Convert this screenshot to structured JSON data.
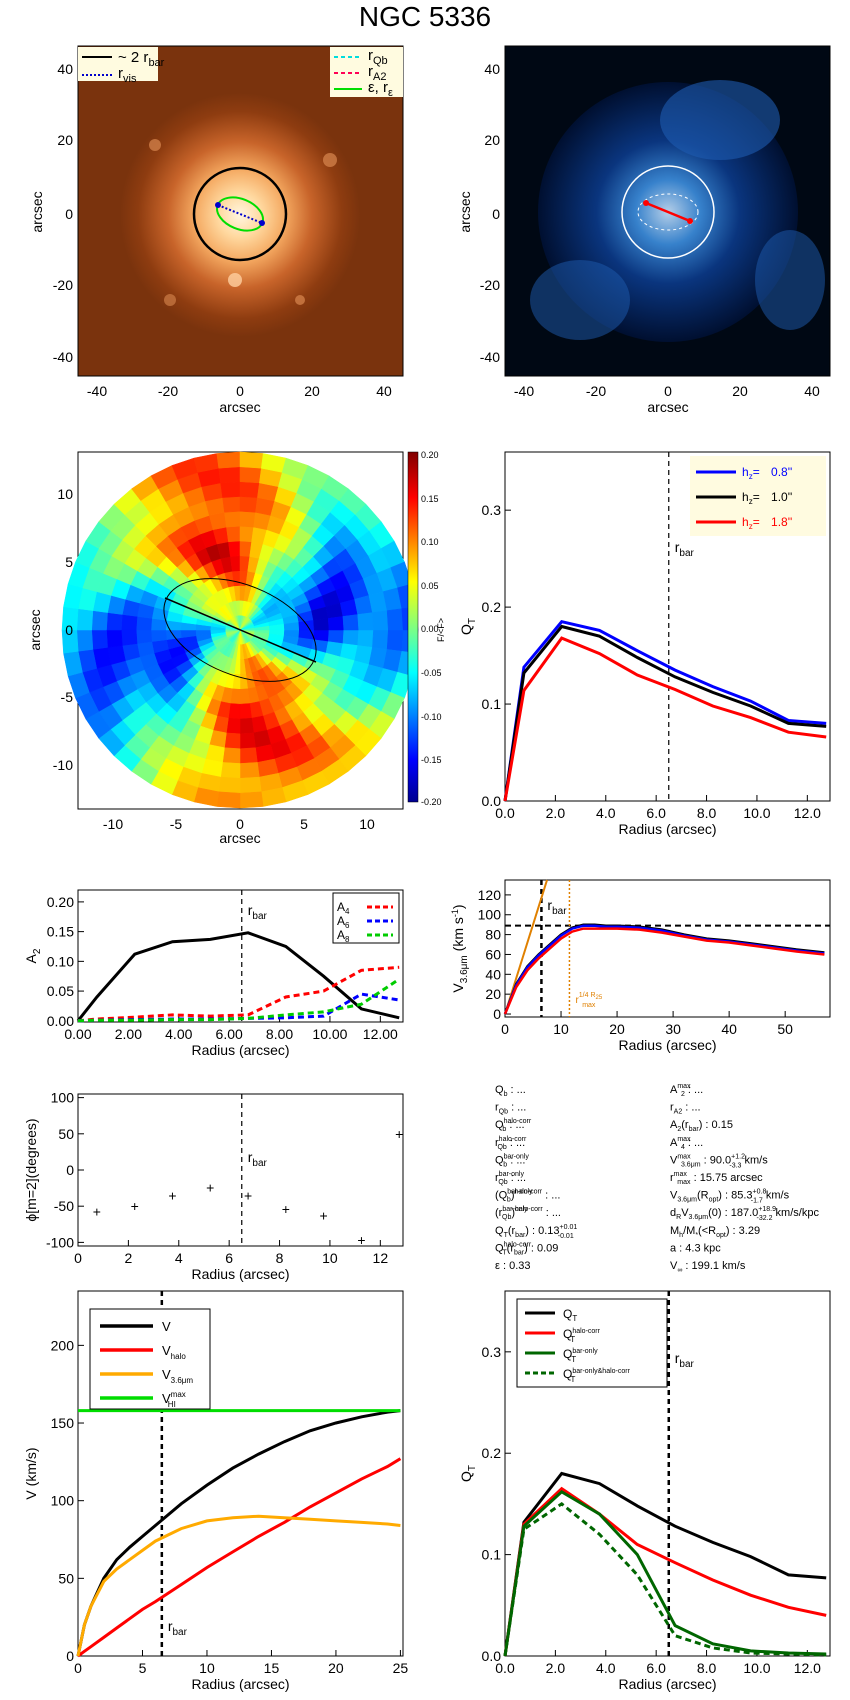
{
  "title": "NGC 5336",
  "panel_image": {
    "xlabel": "arcsec",
    "ylabel": "arcsec",
    "ticks": [
      "-40",
      "-20",
      "0",
      "20",
      "40"
    ],
    "legend_left": [
      "~ 2 r",
      "bar",
      "r",
      "vis"
    ],
    "legend_right": [
      "r",
      "Qb",
      "r",
      "A2",
      "ε, r",
      "ε"
    ]
  },
  "panel_residual": {
    "xlabel": "arcsec",
    "ylabel": "arcsec",
    "ticks": [
      "-40",
      "-20",
      "0",
      "20",
      "40"
    ]
  },
  "panel_ratio": {
    "xlabel": "arcsec",
    "ylabel": "arcsec",
    "ticks": [
      "-10",
      "-5",
      "0",
      "5",
      "10"
    ],
    "colorbar_ticks": [
      "0.20",
      "0.15",
      "0.10",
      "0.05",
      "0.00",
      "-0.05",
      "-0.10",
      "-0.15",
      "-0.20"
    ],
    "colorbar_label": "F/<F>",
    "colors": {
      "neg": "#00008f",
      "pos": "#800000"
    }
  },
  "chart_data": [
    {
      "type": "line",
      "id": "qt_hz",
      "x": [
        0,
        0.75,
        2.25,
        3.75,
        5.25,
        6.75,
        8.25,
        9.75,
        11.25,
        12.75
      ],
      "series": [
        {
          "name": "h",
          "label_value": "0.8''",
          "color": "#0000ff",
          "values": [
            0,
            0.138,
            0.185,
            0.176,
            0.155,
            0.135,
            0.118,
            0.103,
            0.083,
            0.08
          ]
        },
        {
          "name": "h",
          "label_value": "1.0''",
          "color": "#000000",
          "values": [
            0,
            0.132,
            0.18,
            0.17,
            0.148,
            0.128,
            0.112,
            0.098,
            0.08,
            0.077
          ]
        },
        {
          "name": "h",
          "label_value": "1.8''",
          "color": "#ff0000",
          "values": [
            0,
            0.114,
            0.168,
            0.152,
            0.13,
            0.115,
            0.098,
            0.086,
            0.071,
            0.066
          ]
        }
      ],
      "xlim": [
        0,
        12.9
      ],
      "ylim": [
        0,
        0.36
      ],
      "xticks": [
        0,
        2,
        4,
        6,
        8,
        10,
        12
      ],
      "yticks": [
        0.0,
        0.1,
        0.2,
        0.3
      ],
      "xlabel": "Radius (arcsec)",
      "ylabel": "Q",
      "rbar": 6.5,
      "rbar_label": "r",
      "rbar_sub": "bar",
      "legend_prefix": "h",
      "legend_sub": "z"
    },
    {
      "type": "line",
      "id": "a2",
      "x": [
        0,
        0.75,
        2.25,
        3.75,
        5.25,
        6.75,
        8.25,
        9.75,
        11.25,
        12.75
      ],
      "series": [
        {
          "name": "A2",
          "color": "#000000",
          "dash": false,
          "values": [
            0,
            0.04,
            0.112,
            0.133,
            0.137,
            0.148,
            0.125,
            0.075,
            0.02,
            0.005
          ]
        },
        {
          "name": "A",
          "sub": "4",
          "color": "#ff0000",
          "dash": true,
          "values": [
            0,
            0.003,
            0.006,
            0.01,
            0.008,
            0.01,
            0.04,
            0.05,
            0.085,
            0.09
          ]
        },
        {
          "name": "A",
          "sub": "6",
          "color": "#0000ff",
          "dash": true,
          "values": [
            0,
            0.001,
            0.002,
            0.003,
            0.003,
            0.004,
            0.005,
            0.008,
            0.045,
            0.035
          ]
        },
        {
          "name": "A",
          "sub": "8",
          "color": "#00cc00",
          "dash": true,
          "values": [
            0,
            0.001,
            0.001,
            0.002,
            0.002,
            0.004,
            0.01,
            0.015,
            0.028,
            0.07
          ]
        }
      ],
      "xlim": [
        0,
        12.9
      ],
      "ylim": [
        -0.002,
        0.22
      ],
      "xticks": [
        0,
        2,
        4,
        6,
        8,
        10,
        12
      ],
      "yticks": [
        0.0,
        0.05,
        0.1,
        0.15,
        0.2
      ],
      "xlabel": "Radius (arcsec)",
      "ylabel": "A",
      "rbar": 6.5
    },
    {
      "type": "line",
      "id": "vcirc",
      "x": [
        0,
        2,
        4,
        6,
        8,
        10,
        12,
        14,
        16,
        18,
        20,
        24,
        28,
        32,
        36,
        40,
        44,
        48,
        52,
        57
      ],
      "series": [
        {
          "name": "black",
          "color": "#000000",
          "values": [
            0,
            30,
            48,
            60,
            70,
            80,
            87,
            90,
            90,
            89,
            89,
            88,
            85,
            80,
            76,
            74,
            71,
            68,
            65,
            62
          ]
        },
        {
          "name": "blue",
          "color": "#0000ff",
          "values": [
            0,
            29,
            47,
            59,
            69,
            79,
            86,
            89,
            89,
            88,
            88,
            87,
            84,
            79,
            75,
            73,
            70,
            67,
            64,
            61
          ]
        },
        {
          "name": "red",
          "color": "#ff0000",
          "values": [
            0,
            27,
            44,
            56,
            66,
            76,
            83,
            86,
            86,
            86,
            86,
            85,
            82,
            78,
            74,
            72,
            69,
            66,
            63,
            60
          ]
        }
      ],
      "orange_line": {
        "x": [
          0,
          7.5
        ],
        "y": [
          0,
          140
        ]
      },
      "hline": 89,
      "xlim": [
        0,
        58
      ],
      "ylim": [
        -3,
        135
      ],
      "xticks": [
        0,
        10,
        20,
        30,
        40,
        50
      ],
      "yticks": [
        0,
        20,
        40,
        60,
        80,
        100,
        120
      ],
      "xlabel": "Radius (arcsec)",
      "ylabel": "V",
      "ylabel_sub": "3.6μm",
      "ylabel_unit": "(km s",
      "ylabel_unit_sup": "-1",
      "ylabel_close": ")",
      "rbar": 6.5,
      "rmax": 11.5,
      "rmax_label": "r",
      "rmax_sup": "1/4 R",
      "rmax_sup_sub": "25",
      "rmax_sub": "max"
    },
    {
      "type": "scatter",
      "id": "phase",
      "x": [
        0.75,
        2.25,
        3.75,
        5.25,
        6.75,
        8.25,
        9.75,
        11.25,
        12.75
      ],
      "y": [
        -57,
        -50,
        -35,
        -24,
        -35,
        -54,
        -63,
        -97,
        50
      ],
      "xlim": [
        0,
        12.9
      ],
      "ylim": [
        -105,
        105
      ],
      "xticks": [
        0,
        2,
        4,
        6,
        8,
        10,
        12
      ],
      "yticks": [
        -100,
        -50,
        0,
        50,
        100
      ],
      "xlabel": "Radius (arcsec)",
      "ylabel": "ϕ[m=2](degrees)",
      "rbar": 6.5
    },
    {
      "type": "line",
      "id": "rotcurve",
      "x": [
        0,
        0.5,
        1,
        2,
        3,
        4,
        5,
        6,
        8,
        10,
        12,
        14,
        16,
        18,
        20,
        22,
        24,
        25
      ],
      "series": [
        {
          "name": "V",
          "color": "#000000",
          "values": [
            0,
            20,
            32,
            50,
            62,
            70,
            77,
            84,
            98,
            110,
            121,
            130,
            138,
            145,
            150,
            154,
            157,
            158
          ]
        },
        {
          "name": "V",
          "sub": "halo",
          "color": "#ff0000",
          "values": [
            0,
            3,
            6,
            12,
            18,
            24,
            30,
            35,
            46,
            57,
            67,
            77,
            86,
            96,
            105,
            114,
            122,
            127
          ]
        },
        {
          "name": "V",
          "sub": "3.6μm",
          "color": "#ffaa00",
          "values": [
            0,
            20,
            32,
            48,
            56,
            62,
            68,
            74,
            82,
            87,
            89,
            90,
            89,
            88,
            87,
            86,
            85,
            84
          ]
        },
        {
          "name": "V",
          "sub": "HI",
          "sup": "max",
          "color": "#00dd00",
          "values": [
            158,
            158,
            158,
            158,
            158,
            158,
            158,
            158,
            158,
            158,
            158,
            158,
            158,
            158,
            158,
            158,
            158,
            158
          ]
        }
      ],
      "xlim": [
        0,
        25.2
      ],
      "ylim": [
        0,
        235
      ],
      "xticks": [
        0,
        5,
        10,
        15,
        20,
        25
      ],
      "yticks": [
        0,
        50,
        100,
        150,
        200
      ],
      "xlabel": "Radius (arcsec)",
      "ylabel": "V (km/s)",
      "rbar": 6.5
    },
    {
      "type": "line",
      "id": "qt_corr",
      "x": [
        0,
        0.75,
        2.25,
        3.75,
        5.25,
        6.75,
        8.25,
        9.75,
        11.25,
        12.75
      ],
      "series": [
        {
          "name": "Q",
          "sub": "T",
          "color": "#000000",
          "dash": false,
          "values": [
            0,
            0.132,
            0.18,
            0.17,
            0.148,
            0.128,
            0.112,
            0.098,
            0.08,
            0.077
          ]
        },
        {
          "name": "Q",
          "sub": "T",
          "sup": "halo-corr",
          "color": "#ff0000",
          "dash": false,
          "values": [
            0,
            0.13,
            0.165,
            0.14,
            0.11,
            0.092,
            0.075,
            0.06,
            0.048,
            0.04
          ]
        },
        {
          "name": "Q",
          "sub": "T",
          "sup": "bar-only",
          "color": "#006600",
          "dash": false,
          "values": [
            0,
            0.128,
            0.162,
            0.14,
            0.1,
            0.03,
            0.012,
            0.005,
            0.003,
            0.002
          ]
        },
        {
          "name": "Q",
          "sub": "T",
          "sup": "bar-only&halo-corr",
          "color": "#006600",
          "dash": true,
          "values": [
            0,
            0.125,
            0.15,
            0.12,
            0.08,
            0.02,
            0.008,
            0.003,
            0.002,
            0.001
          ]
        }
      ],
      "xlim": [
        0,
        12.9
      ],
      "ylim": [
        0,
        0.36
      ],
      "xticks": [
        0,
        2,
        4,
        6,
        8,
        10,
        12
      ],
      "yticks": [
        0.0,
        0.1,
        0.2,
        0.3
      ],
      "xlabel": "Radius (arcsec)",
      "ylabel": "Q",
      "rbar": 6.5
    }
  ],
  "params_left": [
    {
      "t": "Q",
      "s": "b",
      "v": ": ..."
    },
    {
      "t": "r",
      "s": "Qb",
      "v": ": ..."
    },
    {
      "t": "Q",
      "s": "b",
      "p": "halo-corr",
      "v": ": ..."
    },
    {
      "t": "r",
      "s": "Qb",
      "p": "halo-corr",
      "v": ": ..."
    },
    {
      "t": "Q",
      "s": "b",
      "p": "bar-only",
      "v": ": ..."
    },
    {
      "t": "r",
      "s": "Qb",
      "p": "bar-only",
      "v": ": ..."
    },
    {
      "t": "(Q",
      "s": "b",
      "p": "bar-only",
      "t2": ")",
      "p2": "halo-corr",
      "v": ": ..."
    },
    {
      "t": "(r",
      "s": "Qb",
      "p": "bar-only",
      "t2": ")",
      "p2": "halo-corr",
      "v": ": ..."
    },
    {
      "t": "Q",
      "s": "T",
      "t2": "(r",
      "s2": "bar",
      "t3": ")",
      "v": ":  0.13",
      "e": "+0.01 -0.01"
    },
    {
      "t": "Q",
      "s": "T",
      "p": "halo-corr",
      "t2": "(r",
      "s2": "bar",
      "t3": ")",
      "v": ":  0.09"
    },
    {
      "t": "ε",
      "v": ":  0.33"
    }
  ],
  "params_right": [
    {
      "t": "A",
      "s": "2",
      "p": "max",
      "v": ": ..."
    },
    {
      "t": "r",
      "s": "A2",
      "v": ": ..."
    },
    {
      "t": "A",
      "s": "2",
      "t2": "(r",
      "s2": "bar",
      "t3": ")",
      "v": ":  0.15"
    },
    {
      "t": "A",
      "s": "4",
      "p": "max",
      "v": ": ..."
    },
    {
      "t": "V",
      "s": "3.6μm",
      "p": "max",
      "v": ":  90.0",
      "e": "+1.2 -3.3",
      "u": "km/s"
    },
    {
      "t": "r",
      "s": "max",
      "p": "max",
      "v": ":  15.75 arcsec"
    },
    {
      "t": "V",
      "s": "3.6μm",
      "t2": "(R",
      "s2": "opt",
      "t3": ")",
      "v": ":  85.3",
      "e": "+0.8 -1.7",
      "u": "km/s"
    },
    {
      "t": "d",
      "s": "R",
      "t2": "V",
      "s2": "3.6μm",
      "t3": "(0)",
      "v": ":  187.0",
      "e": "+18.9 -32.2",
      "u": "km/s/kpc"
    },
    {
      "t": "M",
      "s": "h",
      "t2": "/M",
      "s2": "*",
      "t3": "(<R",
      "s3": "opt",
      "t4": ")",
      "v": ":  3.29"
    },
    {
      "t": "a",
      "v": ":  4.3 kpc"
    },
    {
      "t": "V",
      "s": "∞",
      "v": ":  199.1 km/s"
    }
  ]
}
